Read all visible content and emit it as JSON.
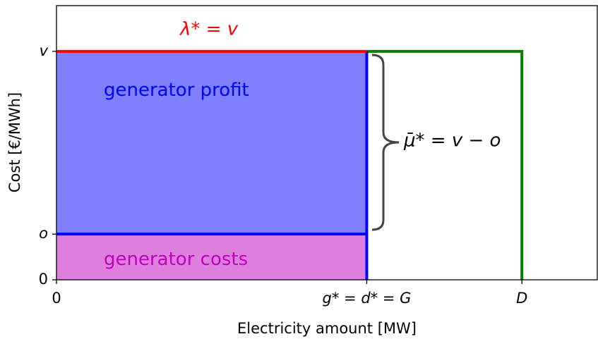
{
  "chart_data": {
    "type": "line",
    "xlabel": "Electricity amount [MW]",
    "ylabel": "Cost [€/MWh]",
    "xlim": [
      0,
      17.43
    ],
    "ylim": [
      0,
      12
    ],
    "xticks": [
      0,
      {
        "value": 10,
        "label": "g* = d* = G"
      },
      {
        "value": 15,
        "label": "D"
      }
    ],
    "yticks": [
      0,
      {
        "value": 2,
        "label": "o"
      },
      {
        "value": 10,
        "label": "v"
      }
    ],
    "areas": [
      {
        "label": "generator profit",
        "color": "#8080ff",
        "label_color": "#0000ff",
        "x": [
          0,
          10
        ],
        "y": [
          2,
          10
        ]
      },
      {
        "label": "generator costs",
        "color": "#df80df",
        "label_color": "#bf00bf",
        "x": [
          0,
          10
        ],
        "y": [
          0,
          2
        ]
      }
    ],
    "series": [
      {
        "color": "#008000",
        "x": [
          10,
          15,
          15
        ],
        "values": [
          10,
          10,
          0
        ]
      },
      {
        "color": "#0000ff",
        "x": [
          0,
          10,
          10,
          10
        ],
        "values": [
          2,
          2,
          0,
          10
        ]
      },
      {
        "color": "#ff0000",
        "x": [
          0,
          10
        ],
        "values": [
          10,
          10
        ]
      }
    ],
    "annotations": [
      "λ* = v",
      "μ̄* = v − o"
    ]
  }
}
